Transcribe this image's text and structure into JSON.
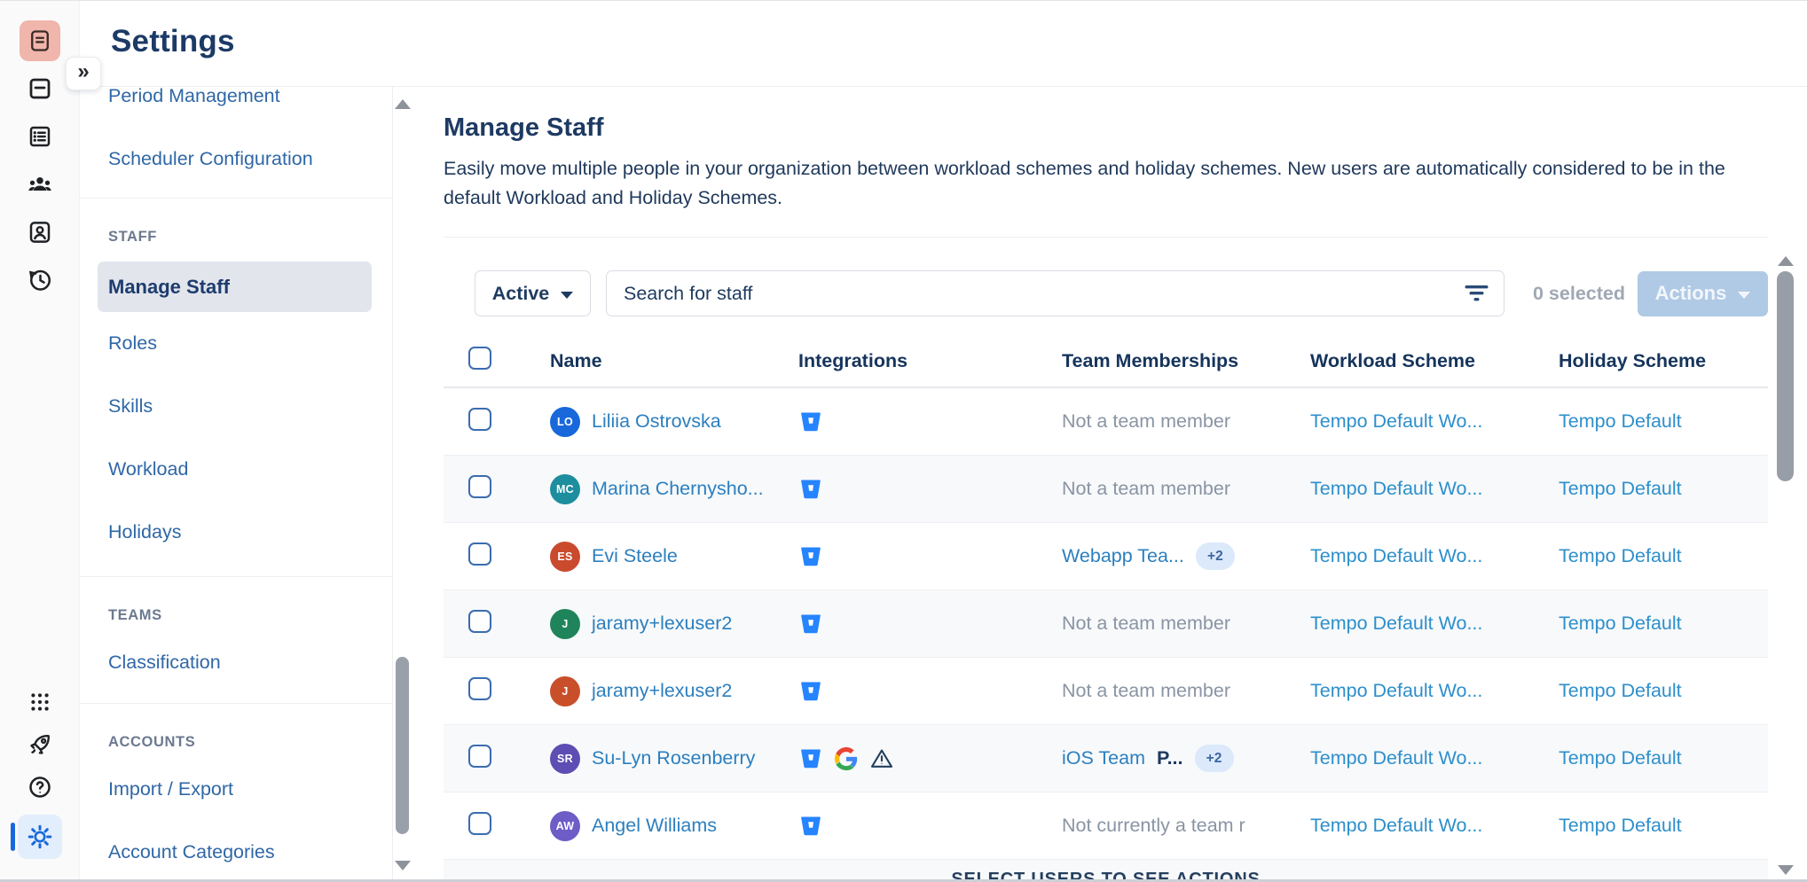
{
  "window": {
    "top_title": "Settings"
  },
  "rail": {
    "expand_label": "»"
  },
  "sidebar": {
    "top_items": [
      {
        "label": "Period Management"
      },
      {
        "label": "Scheduler Configuration"
      }
    ],
    "sections": [
      {
        "title": "STAFF",
        "items": [
          {
            "label": "Manage Staff",
            "selected": true
          },
          {
            "label": "Roles"
          },
          {
            "label": "Skills"
          },
          {
            "label": "Workload"
          },
          {
            "label": "Holidays"
          }
        ]
      },
      {
        "title": "TEAMS",
        "items": [
          {
            "label": "Classification"
          }
        ]
      },
      {
        "title": "ACCOUNTS",
        "items": [
          {
            "label": "Import / Export"
          },
          {
            "label": "Account Categories"
          }
        ]
      }
    ]
  },
  "main": {
    "heading": "Manage Staff",
    "description": "Easily move multiple people in your organization between workload schemes and holiday schemes. New users are automatically considered to be in the default Workload and Holiday Schemes.",
    "filterbar": {
      "status_filter": "Active",
      "search_placeholder": "Search for staff",
      "selected_count": "0 selected",
      "actions_label": "Actions"
    },
    "table": {
      "columns": [
        "Name",
        "Integrations",
        "Team Memberships",
        "Workload Scheme",
        "Holiday Scheme"
      ],
      "rows": [
        {
          "initials": "LO",
          "avatar_color": "#1868DB",
          "name": "Liliia Ostrovska",
          "integrations": [
            "bitbucket"
          ],
          "team": {
            "muted": "Not a team member"
          },
          "workload": "Tempo Default Wo...",
          "holiday": "Tempo Default"
        },
        {
          "initials": "MC",
          "avatar_color": "#1D8E9E",
          "name": "Marina Chernysho...",
          "integrations": [
            "bitbucket"
          ],
          "team": {
            "muted": "Not a team member"
          },
          "workload": "Tempo Default Wo...",
          "holiday": "Tempo Default"
        },
        {
          "initials": "ES",
          "avatar_color": "#CA4A2E",
          "name": "Evi Steele",
          "integrations": [
            "bitbucket"
          ],
          "team": {
            "links": [
              {
                "text": "Webapp Tea...",
                "kind": "link"
              }
            ],
            "badge": "+2"
          },
          "workload": "Tempo Default Wo...",
          "holiday": "Tempo Default"
        },
        {
          "initials": "J",
          "avatar_color": "#1F845A",
          "name": "jaramy+lexuser2",
          "integrations": [
            "bitbucket"
          ],
          "team": {
            "muted": "Not a team member"
          },
          "workload": "Tempo Default Wo...",
          "holiday": "Tempo Default"
        },
        {
          "initials": "J",
          "avatar_color": "#C94F2B",
          "name": "jaramy+lexuser2",
          "integrations": [
            "bitbucket"
          ],
          "team": {
            "muted": "Not a team member"
          },
          "workload": "Tempo Default Wo...",
          "holiday": "Tempo Default"
        },
        {
          "initials": "SR",
          "avatar_color": "#5E4DB2",
          "name": "Su-Lyn Rosenberry",
          "integrations": [
            "bitbucket",
            "google",
            "warning"
          ],
          "team": {
            "links": [
              {
                "text": "iOS Team",
                "kind": "link"
              },
              {
                "text": "P...",
                "kind": "dark"
              }
            ],
            "badge": "+2"
          },
          "workload": "Tempo Default Wo...",
          "holiday": "Tempo Default"
        },
        {
          "initials": "AW",
          "avatar_color": "#6E5DC6",
          "name": "Angel Williams",
          "integrations": [
            "bitbucket"
          ],
          "team": {
            "muted": "Not currently a team r"
          },
          "workload": "Tempo Default Wo...",
          "holiday": "Tempo Default"
        }
      ],
      "footer_hint": "SELECT USERS TO SEE ACTIONS"
    }
  },
  "colors": {
    "accent_blue": "#1868DB",
    "name_link": "#2C7FBE",
    "scheme_link": "#2E8FCB",
    "sidebar_link": "#2F67A6",
    "muted_text": "#8A94A3",
    "actions_disabled_bg": "#B0C9E5",
    "badge_bg": "#DCE9FB",
    "badge_text": "#3E66A0",
    "bitbucket_blue": "#2684FF",
    "selected_item_bg": "#E2E5EC",
    "rail_active_pink": "#F0B5AB"
  }
}
